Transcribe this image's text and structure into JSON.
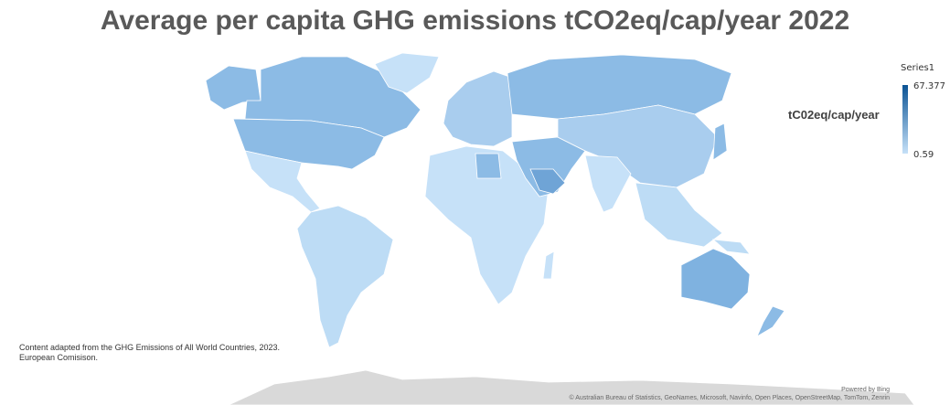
{
  "title": "Average per capita GHG emissions tCO2eq/cap/year 2022",
  "legend": {
    "series_name": "Series1",
    "max_label": "67.377",
    "min_label": "0.59",
    "unit_label": "tC02eq/cap/year",
    "color_low": "#c6e1f8",
    "color_high": "#0b5394"
  },
  "source_note": {
    "line1": "Content adapted from the GHG Emissions of All World Countries, 2023.",
    "line2": "European Comisison."
  },
  "footer": {
    "powered_by": "Powered by Bing",
    "attribution": "© Australian Bureau of Statistics, GeoNames, Microsoft, Navinfo, Open Places, OpenStreetMap, TomTom, Zenrin"
  },
  "chart_data": {
    "type": "filled-map",
    "title": "Average per capita GHG emissions tCO2eq/cap/year 2022",
    "value_range": [
      0.59,
      67.377
    ],
    "legend_title": "Series1",
    "legend_placement": "right",
    "colors": {
      "low": "#c6e1f8",
      "mid": "#8cbbe5",
      "high": "#0b5394",
      "no_data": "#d9d9d9"
    }
  }
}
